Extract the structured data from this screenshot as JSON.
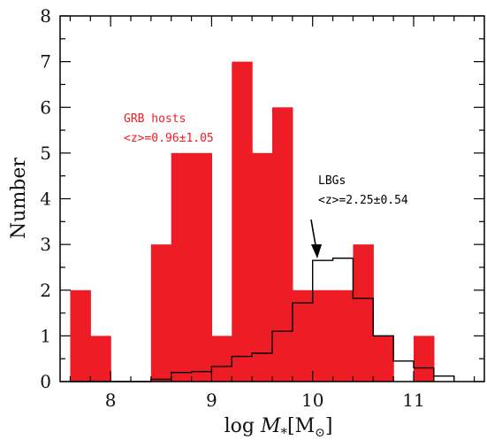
{
  "chart_data": {
    "type": "bar",
    "xlabel_prefix": "log ",
    "xlabel_var": "M",
    "xlabel_sub": "*",
    "xlabel_unit": "M",
    "xlabel_unit_sub": "⊙",
    "ylabel": "Number",
    "xlim": [
      7.5,
      11.7
    ],
    "ylim": [
      0,
      8
    ],
    "xticks": [
      8,
      9,
      10,
      11
    ],
    "yticks": [
      0,
      1,
      2,
      3,
      4,
      5,
      6,
      7,
      8
    ],
    "bin_edges": [
      7.6,
      7.8,
      8.0,
      8.2,
      8.4,
      8.6,
      8.8,
      9.0,
      9.2,
      9.4,
      9.6,
      9.8,
      10.0,
      10.2,
      10.4,
      10.6,
      10.8,
      11.0,
      11.2,
      11.4
    ],
    "series": [
      {
        "name": "GRB hosts",
        "kind": "filled",
        "color": "#ee1c25",
        "values": [
          2,
          1,
          0,
          0,
          3,
          5,
          5,
          1,
          7,
          5,
          6,
          2,
          2,
          2,
          3,
          1,
          0,
          1,
          0
        ]
      },
      {
        "name": "LBGs",
        "kind": "step",
        "color": "#000000",
        "values": [
          0,
          0,
          0,
          0,
          0.05,
          0.2,
          0.22,
          0.33,
          0.55,
          0.62,
          1.1,
          1.72,
          2.65,
          2.7,
          1.82,
          1.0,
          0.45,
          0.3,
          0.12
        ]
      }
    ],
    "annotations": {
      "grb_name": "GRB hosts",
      "grb_z": "<z>=0.96±1.05",
      "lbg_name": "LBGs",
      "lbg_z": "<z>=2.25±0.54"
    }
  }
}
